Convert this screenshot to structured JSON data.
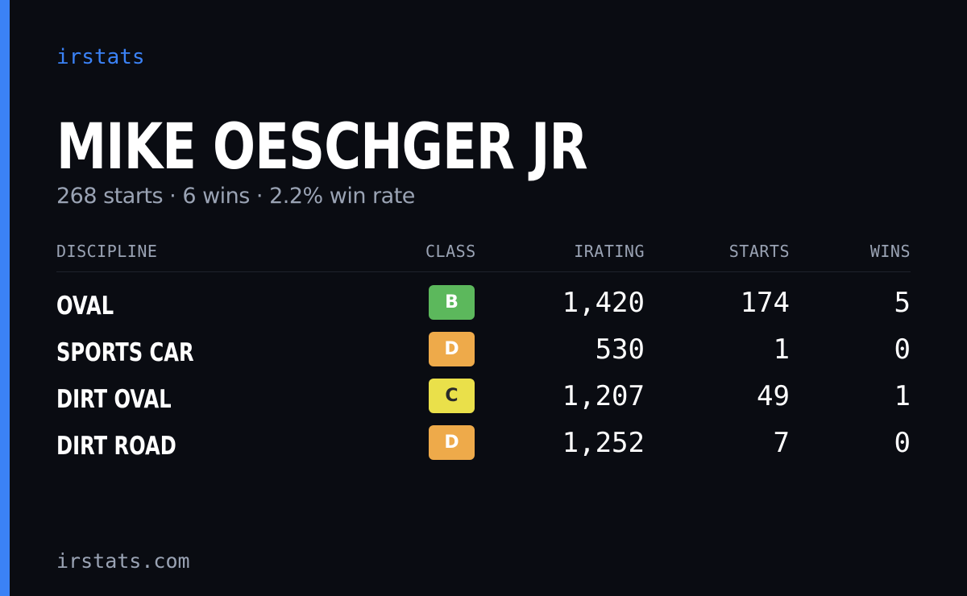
{
  "brand": {
    "name": "irstats",
    "url": "irstats.com"
  },
  "colors": {
    "accent": "#3b82f6",
    "background": "#0a0c12",
    "muted_text": "#9aa3b4",
    "class_b": "#5cb85c",
    "class_c": "#eae04a",
    "class_d": "#eeaa4a"
  },
  "driver": {
    "name": "MIKE OESCHGER JR",
    "summary": "268 starts · 6 wins · 2.2% win rate"
  },
  "table": {
    "headers": {
      "discipline": "DISCIPLINE",
      "class": "CLASS",
      "irating": "IRATING",
      "starts": "STARTS",
      "wins": "WINS"
    },
    "rows": [
      {
        "discipline": "OVAL",
        "class": "B",
        "class_color": "#5cb85c",
        "class_text_color": "#ffffff",
        "irating": "1,420",
        "starts": "174",
        "wins": "5"
      },
      {
        "discipline": "SPORTS CAR",
        "class": "D",
        "class_color": "#eeaa4a",
        "class_text_color": "#ffffff",
        "irating": "530",
        "starts": "1",
        "wins": "0"
      },
      {
        "discipline": "DIRT OVAL",
        "class": "C",
        "class_color": "#eae04a",
        "class_text_color": "#2a2a2a",
        "irating": "1,207",
        "starts": "49",
        "wins": "1"
      },
      {
        "discipline": "DIRT ROAD",
        "class": "D",
        "class_color": "#eeaa4a",
        "class_text_color": "#ffffff",
        "irating": "1,252",
        "starts": "7",
        "wins": "0"
      }
    ]
  }
}
